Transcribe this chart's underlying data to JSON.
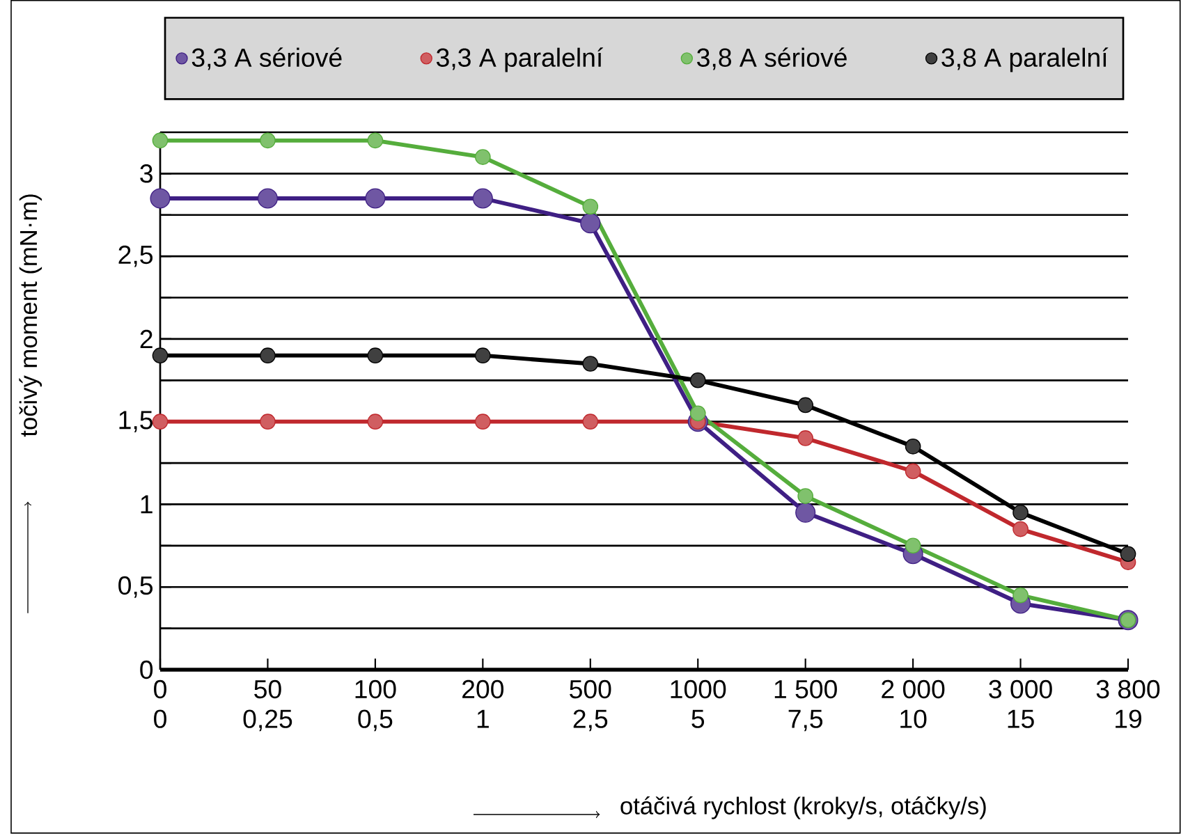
{
  "chart_data": {
    "type": "line",
    "xlabel": "otáčivá rychlost (kroky/s, otáčky/s)",
    "ylabel": "točivý moment (mN·m)",
    "categories": [
      "0\n0",
      "50\n0,25",
      "100\n0,5",
      "200\n1",
      "500\n2,5",
      "1000\n5",
      "1 500\n7,5",
      "2 000\n10",
      "3 000\n15",
      "3 800\n19"
    ],
    "series": [
      {
        "name": "3,3 A sériové",
        "color": "#3f1f84",
        "values": [
          2.85,
          2.85,
          2.85,
          2.85,
          2.7,
          1.5,
          0.95,
          0.7,
          0.4,
          0.3
        ]
      },
      {
        "name": "3,3 A paralelní",
        "color": "#c0282d",
        "values": [
          1.5,
          1.5,
          1.5,
          1.5,
          1.5,
          1.5,
          1.4,
          1.2,
          0.85,
          0.65
        ]
      },
      {
        "name": "3,8 A sériové",
        "color": "#55ad3c",
        "values": [
          3.2,
          3.2,
          3.2,
          3.1,
          2.8,
          1.55,
          1.05,
          0.75,
          0.45,
          0.3
        ]
      },
      {
        "name": "3,8 A paralelní",
        "color": "#000000",
        "values": [
          1.9,
          1.9,
          1.9,
          1.9,
          1.85,
          1.75,
          1.6,
          1.35,
          0.95,
          0.7
        ]
      }
    ],
    "ylim": [
      0,
      3.25
    ],
    "yticks": [
      0,
      {
        "value": 0.25,
        "label": null
      },
      {
        "value": 0.5,
        "label": "0,5"
      },
      {
        "value": 0.75,
        "label": null
      },
      1,
      {
        "value": 1.25,
        "label": null
      },
      {
        "value": 1.5,
        "label": "1,5"
      },
      {
        "value": 1.75,
        "label": null
      },
      2,
      {
        "value": 2.25,
        "label": null
      },
      {
        "value": 2.5,
        "label": "2,5"
      },
      {
        "value": 2.75,
        "label": null
      },
      3,
      {
        "value": 3.25,
        "label": null
      }
    ],
    "grid": "y",
    "legend": "top",
    "marker": "circle",
    "line_style": "solid"
  }
}
